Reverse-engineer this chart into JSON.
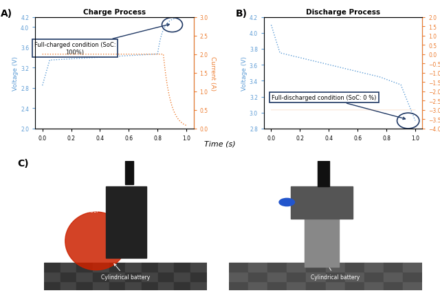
{
  "charge_title": "Charge Process",
  "discharge_title": "Discharge Process",
  "xlabel": "Time (s)",
  "voltage_ylabel": "Voltage (V)",
  "current_ylabel": "Current (A)",
  "charge_voltage_ylim": [
    2.0,
    4.2
  ],
  "charge_current_ylim": [
    0,
    3
  ],
  "discharge_voltage_ylim": [
    2.8,
    4.2
  ],
  "discharge_current_ylim": [
    -4,
    2
  ],
  "charge_voltage_yticks": [
    2.0,
    2.4,
    2.8,
    3.2,
    3.6,
    4.0,
    4.2
  ],
  "charge_current_yticks": [
    0.0,
    0.5,
    1.0,
    1.5,
    2.0,
    2.5,
    3.0
  ],
  "discharge_voltage_yticks": [
    2.8,
    3.0,
    3.2,
    3.4,
    3.6,
    3.8,
    4.0,
    4.2
  ],
  "discharge_current_yticks": [
    -4.0,
    -3.5,
    -3.0,
    -2.5,
    -2.0,
    -1.5,
    -1.0,
    -0.5,
    0.0,
    0.5,
    1.0,
    1.5,
    2.0
  ],
  "charge_annotation": "Full-charged condition (SoC:\n100%)",
  "discharge_annotation": "Full-discharged condition (SoC: 0 %)",
  "panel_A_label": "A)",
  "panel_B_label": "B)",
  "panel_C_label": "C)",
  "voltage_color": "#5B9BD5",
  "current_color": "#ED7D31",
  "annotation_box_edgecolor": "#1F3864",
  "circle_color": "#1F3864",
  "bg_color": "#FFFFFF",
  "photo_bg_left": "#3a2510",
  "photo_bg_right": "#5a5a5a"
}
